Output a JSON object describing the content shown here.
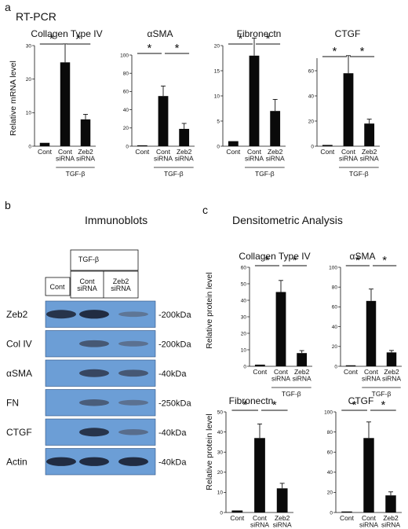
{
  "panels": {
    "a": {
      "label": "a",
      "title": "RT-PCR",
      "ylabel": "Relative mRNA level",
      "treatment_label": "TGF-β",
      "categories": [
        "Cont",
        "Cont siRNA",
        "Zeb2 siRNA"
      ],
      "significance_mark": "*"
    },
    "b": {
      "label": "b",
      "title": "Immunoblots",
      "treatment_label": "TGF-β",
      "lanes": [
        "Cont",
        "Cont siRNA",
        "Zeb2 siRNA"
      ],
      "rows": [
        {
          "protein": "Zeb2",
          "size": "-200kDa",
          "intensity": [
            0.85,
            0.9,
            0.25
          ]
        },
        {
          "protein": "Col IV",
          "size": "-200kDa",
          "intensity": [
            0.0,
            0.55,
            0.3
          ]
        },
        {
          "protein": "αSMA",
          "size": "-40kDa",
          "intensity": [
            0.0,
            0.7,
            0.55
          ]
        },
        {
          "protein": "FN",
          "size": "-250kDa",
          "intensity": [
            0.0,
            0.5,
            0.3
          ]
        },
        {
          "protein": "CTGF",
          "size": "-40kDa",
          "intensity": [
            0.0,
            0.85,
            0.35
          ]
        },
        {
          "protein": "Actin",
          "size": "-40kDa",
          "intensity": [
            0.9,
            0.9,
            0.9
          ]
        }
      ]
    },
    "c": {
      "label": "c",
      "title": "Densitometric Analysis",
      "ylabel": "Relative protein level",
      "treatment_label": "TGF-β",
      "categories": [
        "Cont",
        "Cont siRNA",
        "Zeb2 siRNA"
      ],
      "significance_mark": "*"
    }
  },
  "chart_data": [
    {
      "id": "a-col4",
      "panel": "a",
      "type": "bar",
      "title": "Collagen Type IV",
      "categories": [
        "Cont",
        "Cont siRNA",
        "Zeb2 siRNA"
      ],
      "values": [
        1,
        25,
        8
      ],
      "errors": [
        0,
        5.5,
        1.5
      ],
      "ylim": [
        0,
        30
      ],
      "ticks": [
        0,
        10,
        20,
        30
      ],
      "significance": [
        [
          0,
          1
        ],
        [
          1,
          2
        ]
      ]
    },
    {
      "id": "a-asma",
      "panel": "a",
      "type": "bar",
      "title": "αSMA",
      "categories": [
        "Cont",
        "Cont siRNA",
        "Zeb2 siRNA"
      ],
      "values": [
        1,
        55,
        19
      ],
      "errors": [
        0,
        11,
        6
      ],
      "ylim": [
        0,
        100
      ],
      "ticks": [
        0,
        20,
        40,
        60,
        80,
        100
      ],
      "significance": [
        [
          0,
          1
        ],
        [
          1,
          2
        ]
      ]
    },
    {
      "id": "a-fn",
      "panel": "a",
      "type": "bar",
      "title": "Fibronectn",
      "categories": [
        "Cont",
        "Cont siRNA",
        "Zeb2 siRNA"
      ],
      "values": [
        1,
        18,
        7
      ],
      "errors": [
        0,
        3.5,
        2.3
      ],
      "ylim": [
        0,
        20
      ],
      "ticks": [
        0,
        5,
        10,
        15,
        20
      ],
      "significance": [
        [
          0,
          1
        ],
        [
          1,
          2
        ]
      ]
    },
    {
      "id": "a-ctgf",
      "panel": "a",
      "type": "bar",
      "title": "CTGF",
      "categories": [
        "Cont",
        "Cont siRNA",
        "Zeb2 siRNA"
      ],
      "values": [
        1,
        58,
        18
      ],
      "errors": [
        0,
        14,
        3.5
      ],
      "ylim": [
        0,
        70
      ],
      "ticks": [
        0,
        20,
        40,
        60
      ],
      "significance": [
        [
          0,
          1
        ],
        [
          1,
          2
        ]
      ]
    },
    {
      "id": "c-col4",
      "panel": "c",
      "type": "bar",
      "title": "Collagen Type IV",
      "categories": [
        "Cont",
        "Cont siRNA",
        "Zeb2 siRNA"
      ],
      "values": [
        1,
        45,
        8
      ],
      "errors": [
        0,
        7,
        1.5
      ],
      "ylim": [
        0,
        60
      ],
      "ticks": [
        0,
        10,
        20,
        30,
        40,
        50,
        60
      ],
      "significance": [
        [
          0,
          1
        ],
        [
          1,
          2
        ]
      ]
    },
    {
      "id": "c-asma",
      "panel": "c",
      "type": "bar",
      "title": "αSMA",
      "categories": [
        "Cont",
        "Cont siRNA",
        "Zeb2 siRNA"
      ],
      "values": [
        1,
        66,
        14
      ],
      "errors": [
        0,
        12,
        2
      ],
      "ylim": [
        0,
        100
      ],
      "ticks": [
        0,
        20,
        40,
        60,
        80,
        100
      ],
      "significance": [
        [
          0,
          1
        ],
        [
          1,
          2
        ]
      ]
    },
    {
      "id": "c-fn",
      "panel": "c",
      "type": "bar",
      "title": "Fibronectn",
      "categories": [
        "Cont",
        "Cont siRNA",
        "Zeb2 siRNA"
      ],
      "values": [
        1,
        37,
        12
      ],
      "errors": [
        0,
        7,
        2.5
      ],
      "ylim": [
        0,
        50
      ],
      "ticks": [
        0,
        10,
        20,
        30,
        40,
        50
      ],
      "significance": [
        [
          0,
          1
        ],
        [
          1,
          2
        ]
      ]
    },
    {
      "id": "c-ctgf",
      "panel": "c",
      "type": "bar",
      "title": "CTGF",
      "categories": [
        "Cont",
        "Cont siRNA",
        "Zeb2 siRNA"
      ],
      "values": [
        1,
        74,
        17
      ],
      "errors": [
        0,
        16,
        3.5
      ],
      "ylim": [
        0,
        100
      ],
      "ticks": [
        0,
        20,
        40,
        60,
        80,
        100
      ],
      "significance": [
        [
          0,
          1
        ],
        [
          1,
          2
        ]
      ]
    }
  ]
}
